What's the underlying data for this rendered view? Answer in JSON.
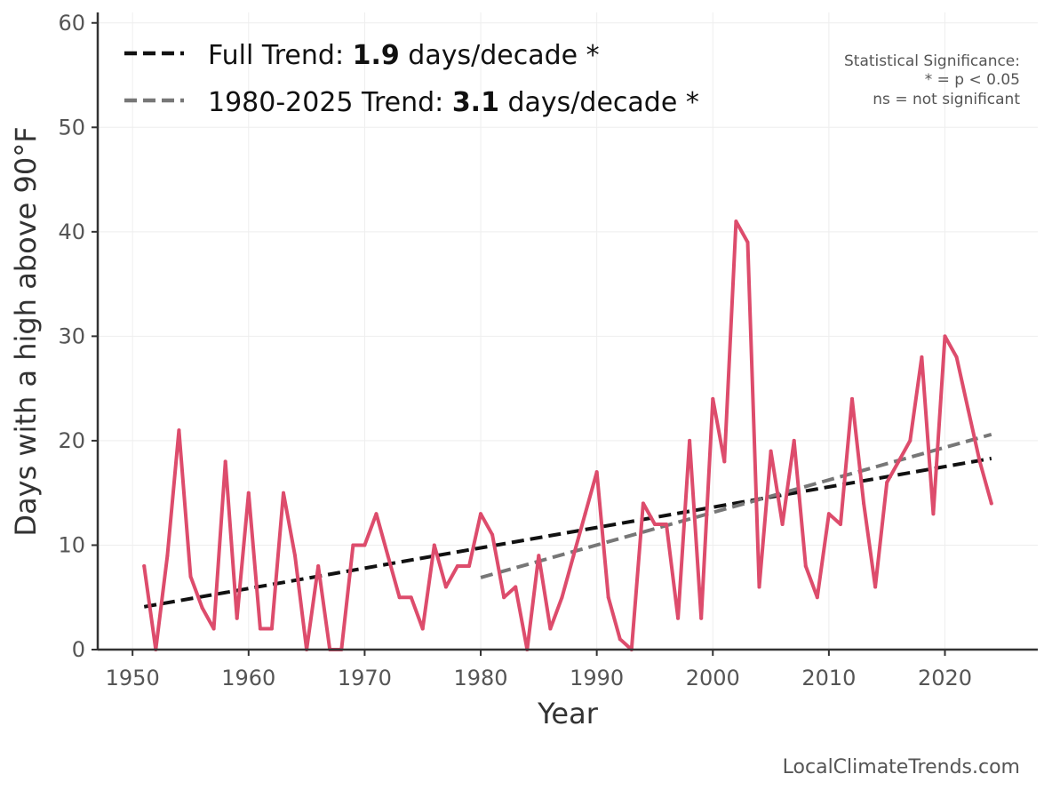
{
  "chart_data": {
    "type": "line",
    "xlabel": "Year",
    "ylabel": "Days with a high above 90°F",
    "xlim": [
      1947,
      2028
    ],
    "ylim": [
      0,
      61
    ],
    "x_ticks": [
      1950,
      1960,
      1970,
      1980,
      1990,
      2000,
      2010,
      2020
    ],
    "y_ticks": [
      0,
      10,
      20,
      30,
      40,
      50,
      60
    ],
    "grid": true,
    "series": [
      {
        "name": "Days above 90°F",
        "color": "#dd4c6c",
        "x": [
          1951,
          1952,
          1953,
          1954,
          1955,
          1956,
          1957,
          1958,
          1959,
          1960,
          1961,
          1962,
          1963,
          1964,
          1965,
          1966,
          1967,
          1968,
          1969,
          1970,
          1971,
          1972,
          1973,
          1974,
          1975,
          1976,
          1977,
          1978,
          1979,
          1980,
          1981,
          1982,
          1983,
          1984,
          1985,
          1986,
          1987,
          1988,
          1989,
          1990,
          1991,
          1992,
          1993,
          1994,
          1995,
          1996,
          1997,
          1998,
          1999,
          2000,
          2001,
          2002,
          2003,
          2004,
          2005,
          2006,
          2007,
          2008,
          2009,
          2010,
          2011,
          2012,
          2013,
          2014,
          2015,
          2016,
          2017,
          2018,
          2019,
          2020,
          2021,
          2022,
          2023,
          2024
        ],
        "values": [
          8,
          0,
          9,
          21,
          7,
          4,
          2,
          18,
          3,
          15,
          2,
          2,
          15,
          9,
          0,
          8,
          0,
          0,
          10,
          10,
          13,
          9,
          5,
          5,
          2,
          10,
          6,
          8,
          8,
          13,
          11,
          5,
          6,
          0,
          9,
          2,
          5,
          9,
          13,
          17,
          5,
          1,
          0,
          14,
          12,
          12,
          3,
          20,
          3,
          24,
          18,
          41,
          39,
          6,
          19,
          12,
          20,
          8,
          5,
          13,
          12,
          24,
          14,
          6,
          16,
          18,
          20,
          28,
          13,
          30,
          28,
          23,
          18,
          14
        ]
      }
    ],
    "trends": [
      {
        "name": "Full Trend",
        "color": "#111111",
        "style": "dashed",
        "x": [
          1951,
          2024
        ],
        "y": [
          4.1,
          18.3
        ]
      },
      {
        "name": "1980-2025 Trend",
        "color": "#777777",
        "style": "dashed",
        "x": [
          1980,
          2024
        ],
        "y": [
          6.9,
          20.6
        ]
      }
    ],
    "legend": [
      {
        "prefix": "Full Trend: ",
        "value": "1.9",
        "suffix": " days/decade *",
        "color": "#111111"
      },
      {
        "prefix": "1980-2025 Trend: ",
        "value": "3.1",
        "suffix": " days/decade *",
        "color": "#777777"
      }
    ],
    "legend_position": "top-left",
    "significance_note": [
      "Statistical Significance:",
      "* = p < 0.05",
      "ns = not significant"
    ],
    "credit": "LocalClimateTrends.com"
  }
}
